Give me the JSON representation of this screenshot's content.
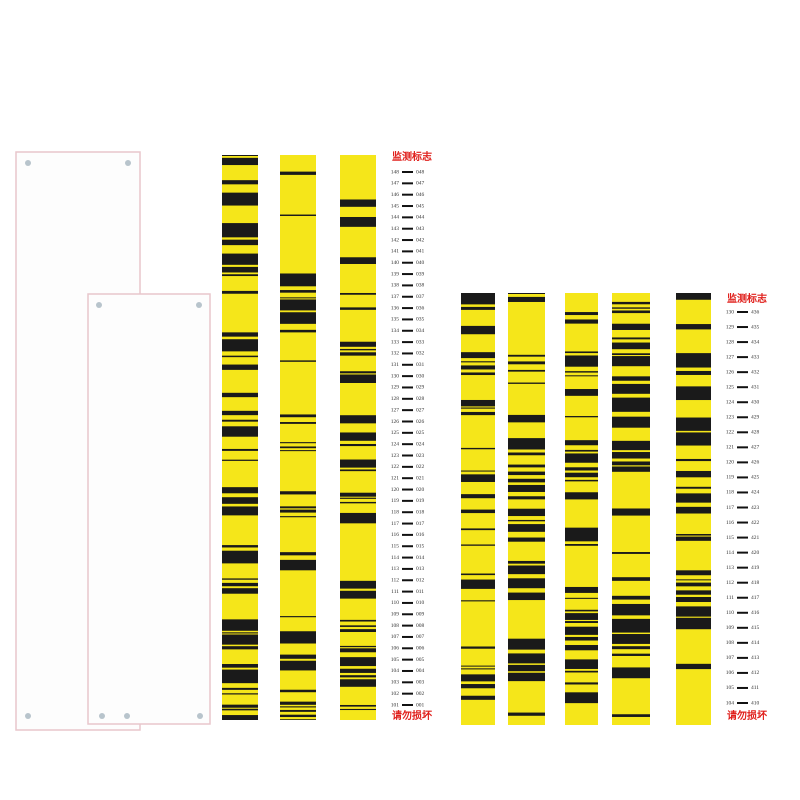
{
  "left_staff": {
    "title": "监测标志",
    "footer": "请勿损坏",
    "scale_left": [
      148,
      147,
      146,
      145,
      144,
      143,
      142,
      141,
      140,
      139,
      138,
      137,
      136,
      135,
      134,
      133,
      132,
      131,
      130,
      129,
      128,
      127,
      126,
      125,
      124,
      123,
      122,
      121,
      120,
      119,
      118,
      117,
      116,
      115,
      114,
      113,
      112,
      111,
      110,
      109,
      108,
      107,
      106,
      105,
      104,
      103,
      102,
      101
    ],
    "scale_right": [
      "048",
      "047",
      "046",
      "045",
      "044",
      "043",
      "042",
      "041",
      "040",
      "039",
      "038",
      "037",
      "036",
      "035",
      "034",
      "033",
      "032",
      "031",
      "030",
      "029",
      "028",
      "027",
      "026",
      "025",
      "024",
      "023",
      "022",
      "021",
      "020",
      "019",
      "018",
      "017",
      "016",
      "015",
      "014",
      "013",
      "012",
      "011",
      "010",
      "009",
      "008",
      "007",
      "006",
      "005",
      "004",
      "003",
      "002",
      "001"
    ]
  },
  "right_staff": {
    "title": "监测标志",
    "footer": "请勿损坏",
    "scale_left": [
      130,
      129,
      128,
      127,
      126,
      125,
      124,
      123,
      122,
      121,
      120,
      119,
      118,
      117,
      116,
      115,
      114,
      113,
      112,
      111,
      110,
      109,
      108,
      107,
      106,
      105,
      104
    ],
    "scale_right": [
      "436",
      "435",
      "434",
      "433",
      "432",
      "431",
      "430",
      "429",
      "428",
      "427",
      "426",
      "425",
      "424",
      "423",
      "422",
      "421",
      "420",
      "419",
      "418",
      "417",
      "416",
      "415",
      "414",
      "413",
      "412",
      "411",
      "410"
    ]
  }
}
